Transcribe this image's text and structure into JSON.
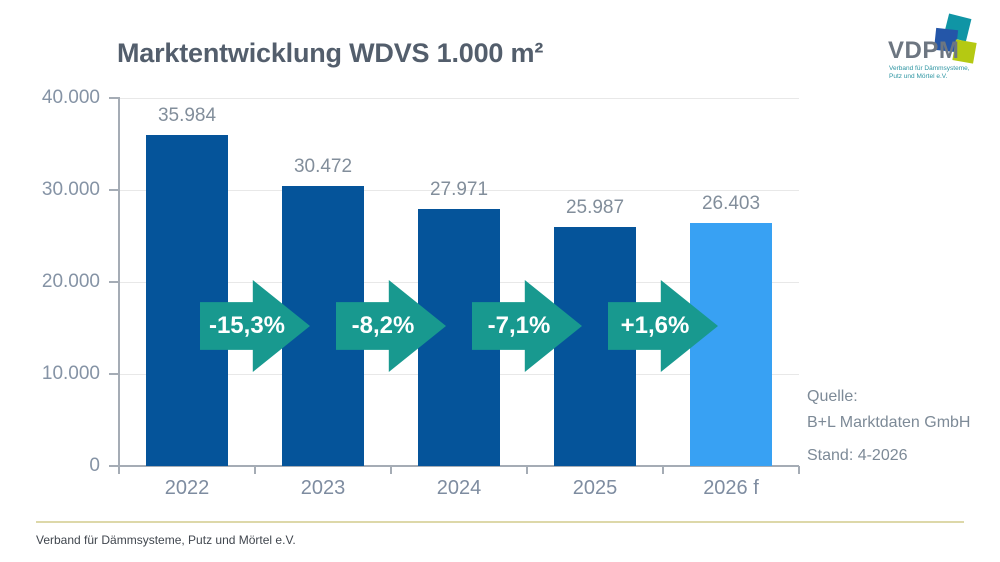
{
  "title": "Marktentwicklung WDVS 1.000 m²",
  "logo": {
    "wordmark": "VDPM",
    "subtitle_line1": "Verband für Dämmsysteme,",
    "subtitle_line2": "Putz und Mörtel e.V.",
    "square_colors": {
      "teal": "#1095a5",
      "blue": "#2456a8",
      "lime": "#b5c912"
    }
  },
  "chart_data": {
    "type": "bar",
    "title": "Marktentwicklung WDVS 1.000 m²",
    "categories": [
      "2022",
      "2023",
      "2024",
      "2025",
      "2026 f"
    ],
    "values": [
      35984,
      30472,
      27971,
      25987,
      26403
    ],
    "value_labels": [
      "35.984",
      "30.472",
      "27.971",
      "25.987",
      "26.403"
    ],
    "change_arrows": [
      "-15,3%",
      "-8,2%",
      "-7,1%",
      "+1,6%"
    ],
    "y_tick_values": [
      40000,
      30000,
      20000,
      10000,
      0
    ],
    "y_tick_labels": [
      "40.000",
      "30.000",
      "20.000",
      "10.000",
      "0"
    ],
    "ylim": [
      0,
      40000
    ],
    "xlabel": "",
    "ylabel": "",
    "grid": "horizontal",
    "legend": "none",
    "bar_colors": [
      "#05549a",
      "#05549a",
      "#05549a",
      "#05549a",
      "#38a1f3"
    ],
    "arrow_color": "#18998f"
  },
  "source": {
    "label": "Quelle:",
    "company": "B+L Marktdaten GmbH",
    "date": "Stand: 4-2026"
  },
  "footer": {
    "text": "Verband für Dämmsysteme, Putz und Mörtel e.V."
  }
}
